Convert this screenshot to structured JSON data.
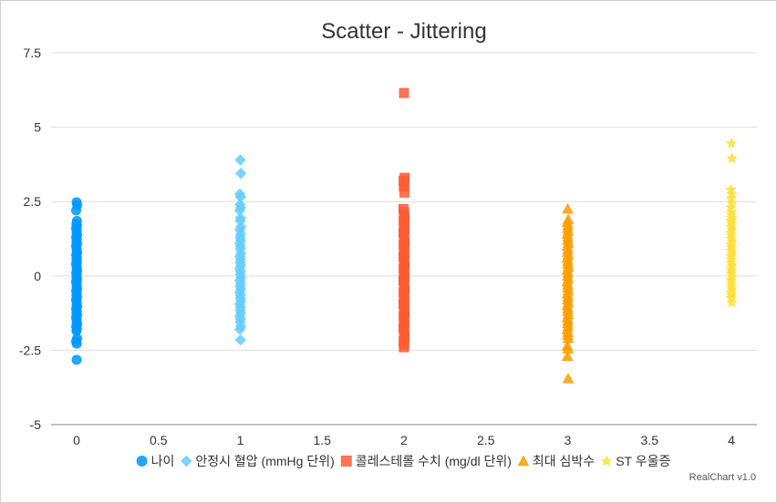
{
  "credits": "RealChart v1.0",
  "chart_data": {
    "type": "scatter",
    "title": "Scatter - Jittering",
    "xlabel": "",
    "ylabel": "",
    "xlim": [
      0,
      4
    ],
    "ylim": [
      -5,
      7.5
    ],
    "x_ticks": [
      0,
      0.5,
      1,
      1.5,
      2,
      2.5,
      3,
      3.5,
      4
    ],
    "x_tick_labels": [
      "0",
      "0.5",
      "1",
      "1.5",
      "2",
      "2.5",
      "3",
      "3.5",
      "4"
    ],
    "y_ticks": [
      -5,
      -2.5,
      0,
      2.5,
      5,
      7.5
    ],
    "y_tick_labels": [
      "-5",
      "-2.5",
      "0",
      "2.5",
      "5",
      "7.5"
    ],
    "grid": true,
    "legend_position": "bottom",
    "series": [
      {
        "name": "나이",
        "marker": "circle",
        "color": "#0098ff",
        "x": 0,
        "values": [
          2.48,
          2.38,
          2.2,
          1.85,
          1.75,
          1.68,
          1.6,
          1.52,
          1.45,
          1.38,
          1.3,
          1.22,
          1.15,
          1.08,
          1.0,
          0.92,
          0.85,
          0.78,
          0.7,
          0.62,
          0.55,
          0.48,
          0.4,
          0.33,
          0.25,
          0.18,
          0.1,
          0.03,
          -0.05,
          -0.12,
          -0.2,
          -0.28,
          -0.35,
          -0.42,
          -0.5,
          -0.58,
          -0.65,
          -0.72,
          -0.8,
          -0.88,
          -0.95,
          -1.02,
          -1.1,
          -1.18,
          -1.25,
          -1.32,
          -1.4,
          -1.48,
          -1.55,
          -1.62,
          -1.7,
          -1.78,
          -1.85,
          -2.1,
          -2.2,
          -2.28,
          -2.82
        ]
      },
      {
        "name": "안정시 혈압 (mmHg 단위)",
        "marker": "diamond",
        "color": "#66ccff",
        "x": 1,
        "values": [
          3.9,
          3.45,
          2.75,
          2.65,
          2.4,
          2.3,
          2.2,
          1.95,
          1.85,
          1.65,
          1.55,
          1.4,
          1.3,
          1.2,
          1.1,
          1.0,
          0.9,
          0.75,
          0.65,
          0.55,
          0.45,
          0.35,
          0.25,
          0.15,
          0.05,
          -0.05,
          -0.15,
          -0.25,
          -0.35,
          -0.45,
          -0.55,
          -0.65,
          -0.75,
          -0.85,
          -0.95,
          -1.05,
          -1.15,
          -1.25,
          -1.35,
          -1.45,
          -1.55,
          -1.7,
          -1.8,
          -2.15
        ]
      },
      {
        "name": "콜레스테롤 수치 (mg/dl 단위)",
        "marker": "square",
        "color": "#ff5c35",
        "x": 2,
        "values": [
          6.15,
          3.3,
          3.2,
          3.1,
          3.0,
          2.8,
          2.25,
          2.15,
          2.05,
          1.95,
          1.85,
          1.75,
          1.65,
          1.55,
          1.45,
          1.35,
          1.25,
          1.15,
          1.05,
          0.95,
          0.85,
          0.75,
          0.65,
          0.55,
          0.45,
          0.35,
          0.25,
          0.15,
          0.05,
          -0.05,
          -0.15,
          -0.25,
          -0.35,
          -0.45,
          -0.55,
          -0.65,
          -0.75,
          -0.85,
          -0.95,
          -1.05,
          -1.15,
          -1.25,
          -1.35,
          -1.45,
          -1.55,
          -1.65,
          -1.75,
          -1.85,
          -1.95,
          -2.05,
          -2.2,
          -2.3,
          -2.4
        ]
      },
      {
        "name": "최대 심박수",
        "marker": "triangle",
        "color": "#ff9e00",
        "x": 3,
        "values": [
          2.25,
          1.9,
          1.8,
          1.7,
          1.6,
          1.5,
          1.4,
          1.3,
          1.2,
          1.1,
          1.0,
          0.9,
          0.8,
          0.7,
          0.6,
          0.5,
          0.4,
          0.3,
          0.2,
          0.1,
          0.0,
          -0.1,
          -0.2,
          -0.3,
          -0.4,
          -0.5,
          -0.6,
          -0.7,
          -0.8,
          -0.9,
          -1.0,
          -1.1,
          -1.2,
          -1.3,
          -1.4,
          -1.5,
          -1.6,
          -1.7,
          -1.8,
          -1.9,
          -2.0,
          -2.1,
          -2.35,
          -2.45,
          -2.7,
          -3.45
        ]
      },
      {
        "name": "ST 우울증",
        "marker": "star",
        "color": "#ffe03d",
        "x": 4,
        "values": [
          4.45,
          3.95,
          2.9,
          2.75,
          2.6,
          2.45,
          2.3,
          2.15,
          2.05,
          1.95,
          1.85,
          1.75,
          1.65,
          1.55,
          1.45,
          1.35,
          1.25,
          1.15,
          1.05,
          0.95,
          0.85,
          0.75,
          0.65,
          0.55,
          0.45,
          0.35,
          0.25,
          0.15,
          0.05,
          -0.05,
          -0.15,
          -0.25,
          -0.35,
          -0.45,
          -0.55,
          -0.65,
          -0.75,
          -0.9
        ]
      }
    ]
  }
}
